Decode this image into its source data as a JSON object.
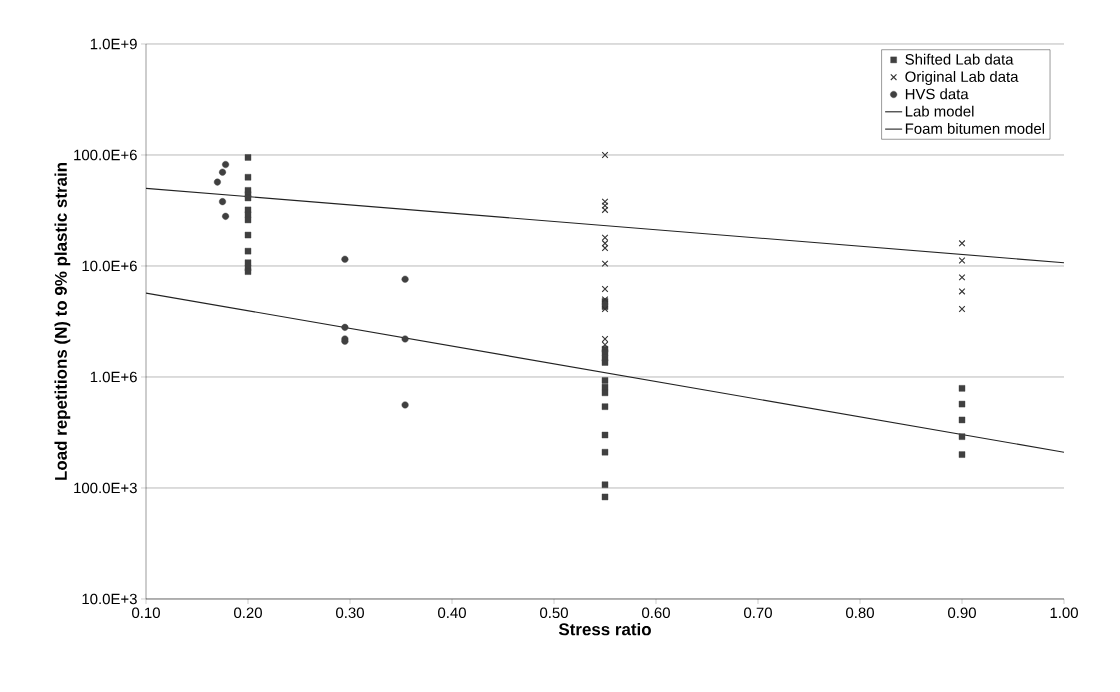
{
  "chart_data": {
    "type": "scatter",
    "xlabel": "Stress ratio",
    "ylabel": "Load repetitions (N) to 9% plastic strain",
    "log": "y",
    "grid": "y",
    "legend": "top right",
    "xlim": [
      0.1,
      1.0
    ],
    "ylim": [
      10000,
      1000000000
    ],
    "xticks": [
      {
        "value": 0.1,
        "label": "0.10"
      },
      {
        "value": 0.2,
        "label": "0.20"
      },
      {
        "value": 0.3,
        "label": "0.30"
      },
      {
        "value": 0.4,
        "label": "0.40"
      },
      {
        "value": 0.5,
        "label": "0.50"
      },
      {
        "value": 0.6,
        "label": "0.60"
      },
      {
        "value": 0.7,
        "label": "0.70"
      },
      {
        "value": 0.8,
        "label": "0.80"
      },
      {
        "value": 0.9,
        "label": "0.90"
      },
      {
        "value": 1.0,
        "label": "1.00"
      }
    ],
    "yticks": [
      {
        "value": 10000,
        "label": "10.0E+3"
      },
      {
        "value": 100000,
        "label": "100.0E+3"
      },
      {
        "value": 1000000,
        "label": "1.0E+6"
      },
      {
        "value": 10000000,
        "label": "10.0E+6"
      },
      {
        "value": 100000000,
        "label": "100.0E+6"
      },
      {
        "value": 1000000000,
        "label": "1.0E+9"
      }
    ],
    "series": [
      {
        "name": "Shifted Lab data",
        "marker": "square",
        "color": "#404040",
        "x": [
          0.2,
          0.2,
          0.2,
          0.2,
          0.2,
          0.2,
          0.2,
          0.2,
          0.2,
          0.2,
          0.2,
          0.2,
          0.2,
          0.55,
          0.55,
          0.55,
          0.55,
          0.55,
          0.55,
          0.55,
          0.55,
          0.55,
          0.55,
          0.55,
          0.55,
          0.55,
          0.55,
          0.9,
          0.9,
          0.9,
          0.9,
          0.9
        ],
        "values": [
          95000000,
          63000000,
          48000000,
          44000000,
          41000000,
          32000000,
          29000000,
          26000000,
          19000000,
          13600000,
          10700000,
          9600000,
          8900000,
          4800000,
          4300000,
          1780000,
          1660000,
          1480000,
          1350000,
          930000,
          810000,
          720000,
          540000,
          300000,
          210000,
          107000,
          83000,
          790000,
          570000,
          410000,
          290000,
          200000
        ]
      },
      {
        "name": "Original Lab data",
        "marker": "cross",
        "color": "#333333",
        "x": [
          0.55,
          0.55,
          0.55,
          0.55,
          0.55,
          0.55,
          0.55,
          0.55,
          0.55,
          0.55,
          0.55,
          0.55,
          0.55,
          0.9,
          0.9,
          0.9,
          0.9,
          0.9
        ],
        "values": [
          100000000,
          38000000,
          35000000,
          32000000,
          18000000,
          16000000,
          14500000,
          10500000,
          6200000,
          5000000,
          4100000,
          2200000,
          1950000,
          16000000,
          11200000,
          7900000,
          5900000,
          4100000
        ]
      },
      {
        "name": "HVS data",
        "marker": "circle",
        "color": "#404040",
        "x": [
          0.178,
          0.175,
          0.17,
          0.175,
          0.178,
          0.295,
          0.354,
          0.295,
          0.295,
          0.295,
          0.354,
          0.354
        ],
        "values": [
          82000000,
          70000000,
          57000000,
          38000000,
          28000000,
          11500000,
          7600000,
          2800000,
          2200000,
          2100000,
          2200000,
          560000
        ]
      },
      {
        "name": "Lab model",
        "type": "line",
        "marker": "none",
        "color": "#222222",
        "x": [
          0.1,
          1.0
        ],
        "values": [
          50000000,
          10700000
        ]
      },
      {
        "name": "Foam bitumen model",
        "type": "line",
        "marker": "none",
        "color": "#222222",
        "x": [
          0.1,
          1.0
        ],
        "values": [
          5700000,
          210000
        ]
      }
    ]
  }
}
